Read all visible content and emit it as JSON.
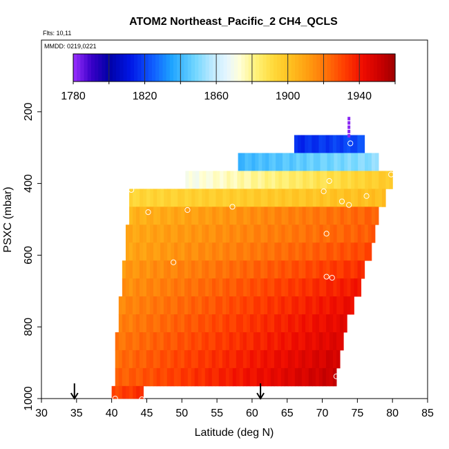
{
  "chart_data": {
    "type": "heatmap",
    "title": "ATOM2 Northeast_Pacific_2 CH4_QCLS",
    "subtitle_flights": "Flts: 10,11",
    "subtitle_dates": "MMDD: 0219,0221",
    "xlabel": "Latitude (deg N)",
    "ylabel": "PSXC (mbar)",
    "xlim": [
      30,
      85
    ],
    "ylim": [
      1000,
      0
    ],
    "x_ticks": [
      "30",
      "35",
      "40",
      "45",
      "50",
      "55",
      "60",
      "65",
      "70",
      "75",
      "80",
      "85"
    ],
    "y_ticks": [
      "200",
      "400",
      "600",
      "800",
      "1000"
    ],
    "colorbar": {
      "min": 1780,
      "max": 1960,
      "tick_labels": [
        "1780",
        "1820",
        "1860",
        "1900",
        "1940"
      ],
      "tick_values": [
        1780,
        1820,
        1860,
        1900,
        1940
      ],
      "stops": [
        {
          "v": 1780,
          "c": "#9b30ff"
        },
        {
          "v": 1790,
          "c": "#3a00c8"
        },
        {
          "v": 1800,
          "c": "#0000a6"
        },
        {
          "v": 1812,
          "c": "#0016e6"
        },
        {
          "v": 1825,
          "c": "#1060ff"
        },
        {
          "v": 1835,
          "c": "#1ea3ff"
        },
        {
          "v": 1848,
          "c": "#70d6ff"
        },
        {
          "v": 1858,
          "c": "#c0eaff"
        },
        {
          "v": 1866,
          "c": "#e6f6ff"
        },
        {
          "v": 1873,
          "c": "#ffffd8"
        },
        {
          "v": 1882,
          "c": "#fff27a"
        },
        {
          "v": 1892,
          "c": "#ffd93a"
        },
        {
          "v": 1902,
          "c": "#ffbe1e"
        },
        {
          "v": 1912,
          "c": "#ff9a10"
        },
        {
          "v": 1922,
          "c": "#ff6f08"
        },
        {
          "v": 1932,
          "c": "#ff3c00"
        },
        {
          "v": 1942,
          "c": "#ef0c00"
        },
        {
          "v": 1952,
          "c": "#c80000"
        },
        {
          "v": 1960,
          "c": "#9e0000"
        }
      ]
    },
    "bands": [
      {
        "p1": 265,
        "p2": 315,
        "lat1": 66,
        "lat2": 76,
        "v1": 1815,
        "v2": 1822
      },
      {
        "p1": 315,
        "p2": 365,
        "lat1": 58,
        "lat2": 78,
        "v1": 1840,
        "v2": 1852
      },
      {
        "p1": 365,
        "p2": 415,
        "lat1": 50.5,
        "lat2": 80,
        "v1": 1870,
        "v2": 1898
      },
      {
        "p1": 415,
        "p2": 465,
        "lat1": 42.5,
        "lat2": 79,
        "v1": 1893,
        "v2": 1902
      },
      {
        "p1": 465,
        "p2": 515,
        "lat1": 42.5,
        "lat2": 78,
        "v1": 1905,
        "v2": 1925
      },
      {
        "p1": 515,
        "p2": 565,
        "lat1": 42,
        "lat2": 77.5,
        "v1": 1908,
        "v2": 1926
      },
      {
        "p1": 565,
        "p2": 615,
        "lat1": 42,
        "lat2": 77,
        "v1": 1909,
        "v2": 1930
      },
      {
        "p1": 615,
        "p2": 665,
        "lat1": 41.5,
        "lat2": 76,
        "v1": 1912,
        "v2": 1935
      },
      {
        "p1": 665,
        "p2": 715,
        "lat1": 41.5,
        "lat2": 75.5,
        "v1": 1914,
        "v2": 1940
      },
      {
        "p1": 715,
        "p2": 765,
        "lat1": 41,
        "lat2": 74.5,
        "v1": 1916,
        "v2": 1943
      },
      {
        "p1": 765,
        "p2": 815,
        "lat1": 41,
        "lat2": 73.5,
        "v1": 1918,
        "v2": 1945
      },
      {
        "p1": 815,
        "p2": 865,
        "lat1": 40.5,
        "lat2": 73,
        "v1": 1920,
        "v2": 1947
      },
      {
        "p1": 865,
        "p2": 915,
        "lat1": 40.5,
        "lat2": 72.5,
        "v1": 1922,
        "v2": 1950
      },
      {
        "p1": 915,
        "p2": 965,
        "lat1": 40.5,
        "lat2": 72,
        "v1": 1924,
        "v2": 1952
      },
      {
        "p1": 965,
        "p2": 1000,
        "lat1": 40,
        "lat2": 44.5,
        "v1": 1930,
        "v2": 1935
      }
    ],
    "profile_points": [
      {
        "lat": 73.8,
        "p": 220,
        "v": 1782
      },
      {
        "lat": 73.8,
        "p": 232,
        "v": 1782
      },
      {
        "lat": 73.8,
        "p": 244,
        "v": 1782
      },
      {
        "lat": 73.8,
        "p": 256,
        "v": 1782
      },
      {
        "lat": 73.8,
        "p": 268,
        "v": 1782
      }
    ],
    "circles": [
      {
        "lat": 74,
        "p": 288
      },
      {
        "lat": 79.8,
        "p": 375
      },
      {
        "lat": 42.8,
        "p": 418
      },
      {
        "lat": 71,
        "p": 393
      },
      {
        "lat": 70.2,
        "p": 422
      },
      {
        "lat": 76.3,
        "p": 435
      },
      {
        "lat": 72.8,
        "p": 450
      },
      {
        "lat": 73.8,
        "p": 460
      },
      {
        "lat": 45.2,
        "p": 480
      },
      {
        "lat": 50.8,
        "p": 474
      },
      {
        "lat": 57.2,
        "p": 465
      },
      {
        "lat": 70.6,
        "p": 540
      },
      {
        "lat": 48.8,
        "p": 620
      },
      {
        "lat": 70.6,
        "p": 660
      },
      {
        "lat": 71.4,
        "p": 663
      },
      {
        "lat": 72,
        "p": 938
      },
      {
        "lat": 40.5,
        "p": 1000
      },
      {
        "lat": 44.3,
        "p": 1002
      }
    ],
    "arrows": [
      {
        "lat": 34.7
      },
      {
        "lat": 61.2
      }
    ]
  }
}
